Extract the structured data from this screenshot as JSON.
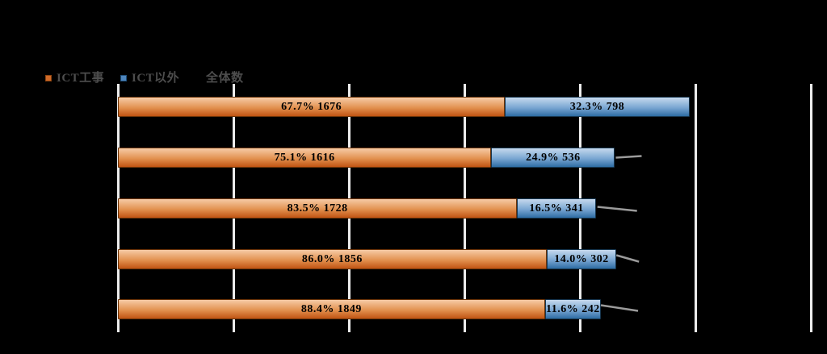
{
  "app": {
    "background_color": "#000000"
  },
  "legend": {
    "text_color": "#4d4d4d",
    "items": [
      {
        "label": "ICT工事",
        "swatch_color": "#d06a28",
        "swatch_border": "#8c4410"
      },
      {
        "label": "ICT以外",
        "swatch_color": "#4f86bd",
        "swatch_border": "#1f4e79"
      },
      {
        "label": "全体数",
        "swatch_color": "#000000",
        "swatch_border": "#000000"
      }
    ]
  },
  "chart_data": {
    "type": "bar",
    "orientation": "horizontal",
    "stacked": true,
    "grid": true,
    "legend_position": "top-left",
    "categories": [
      "",
      "",
      "",
      "",
      ""
    ],
    "series": [
      {
        "name": "ICT工事",
        "color_top": "#f6cba6",
        "color_mid": "#e2914f",
        "color_bottom": "#c05413",
        "border_color": "#6b3409",
        "values": [
          1676,
          1616,
          1728,
          1856,
          1849
        ],
        "labels": [
          "67.7% 1676",
          "75.1% 1616",
          "83.5% 1728",
          "86.0% 1856",
          "88.4% 1849"
        ]
      },
      {
        "name": "ICT以外",
        "color_top": "#c6d9ed",
        "color_mid": "#79a6d2",
        "color_bottom": "#2e6da4",
        "border_color": "#17364f",
        "values": [
          798,
          536,
          341,
          302,
          242
        ],
        "labels": [
          "32.3% 798",
          "24.9% 536",
          "16.5% 341",
          "14.0% 302",
          "11.6% 242"
        ]
      }
    ],
    "totals": [
      2474,
      2152,
      2069,
      2158,
      2091
    ],
    "xlim": [
      0,
      3000
    ],
    "gridline_interval": 500,
    "gridline_color": "#ececec",
    "bar_label_color": "#000000",
    "leader_line_color": "#9b9b9b",
    "leader_line_rows": [
      1,
      2,
      3,
      4
    ]
  }
}
